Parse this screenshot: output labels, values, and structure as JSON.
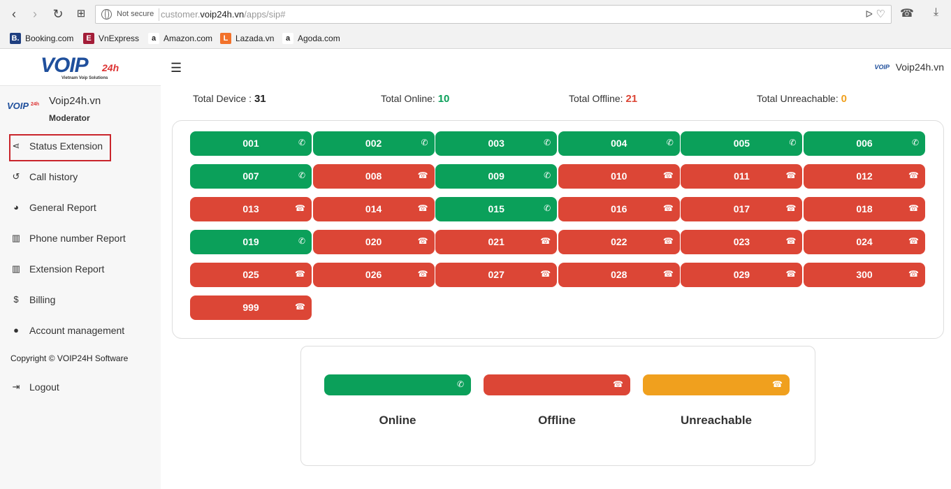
{
  "browser": {
    "security": "Not secure",
    "url_prefix": "customer.",
    "url_domain": "voip24h.vn",
    "url_path": "/apps/sip#",
    "bookmarks": [
      {
        "label": "Booking.com",
        "fav": "B.",
        "color": "#1f3f80"
      },
      {
        "label": "VnExpress",
        "fav": "E",
        "color": "#a31d38"
      },
      {
        "label": "Amazon.com",
        "fav": "a",
        "color": "#ffffff"
      },
      {
        "label": "Lazada.vn",
        "fav": "L",
        "color": "#f2722b"
      },
      {
        "label": "Agoda.com",
        "fav": "a",
        "color": "#ffffff"
      }
    ]
  },
  "logo": {
    "text": "VOIP",
    "suffix": "24h",
    "tagline": "Vietnam Voip Solutions"
  },
  "profile": {
    "avatar_text": "VOIP",
    "avatar_suffix": "24h",
    "name": "Voip24h.vn",
    "role": "Moderator"
  },
  "menu": [
    {
      "label": "Status Extension",
      "icon": "share-icon",
      "glyph": "⋖"
    },
    {
      "label": "Call history",
      "icon": "history-icon",
      "glyph": "↺"
    },
    {
      "label": "General Report",
      "icon": "pie-chart-icon",
      "glyph": "◕"
    },
    {
      "label": "Phone number Report",
      "icon": "bar-chart-icon",
      "glyph": "▥"
    },
    {
      "label": "Extension Report",
      "icon": "bar-chart-icon",
      "glyph": "▥"
    },
    {
      "label": "Billing",
      "icon": "dollar-icon",
      "glyph": "$"
    },
    {
      "label": "Account management",
      "icon": "user-icon",
      "glyph": "●"
    }
  ],
  "copyright": "Copyright © VOIP24H Software",
  "logout": {
    "label": "Logout",
    "glyph": "⇥"
  },
  "header": {
    "brand": "Voip24h.vn",
    "mini_logo": "VOIP"
  },
  "totals": {
    "device_label": "Total Device : ",
    "device": "31",
    "online_label": "Total Online: ",
    "online": "10",
    "offline_label": "Total Offline: ",
    "offline": "21",
    "unreachable_label": "Total Unreachable: ",
    "unreachable": "0"
  },
  "colors": {
    "online": "#0ba05a",
    "offline": "#dc4636",
    "unreachable": "#f0a01e"
  },
  "extensions": [
    {
      "id": "001",
      "status": "online"
    },
    {
      "id": "002",
      "status": "online"
    },
    {
      "id": "003",
      "status": "online"
    },
    {
      "id": "004",
      "status": "online"
    },
    {
      "id": "005",
      "status": "online"
    },
    {
      "id": "006",
      "status": "online"
    },
    {
      "id": "007",
      "status": "online"
    },
    {
      "id": "008",
      "status": "offline"
    },
    {
      "id": "009",
      "status": "online"
    },
    {
      "id": "010",
      "status": "offline"
    },
    {
      "id": "011",
      "status": "offline"
    },
    {
      "id": "012",
      "status": "offline"
    },
    {
      "id": "013",
      "status": "offline"
    },
    {
      "id": "014",
      "status": "offline"
    },
    {
      "id": "015",
      "status": "online"
    },
    {
      "id": "016",
      "status": "offline"
    },
    {
      "id": "017",
      "status": "offline"
    },
    {
      "id": "018",
      "status": "offline"
    },
    {
      "id": "019",
      "status": "online"
    },
    {
      "id": "020",
      "status": "offline"
    },
    {
      "id": "021",
      "status": "offline"
    },
    {
      "id": "022",
      "status": "offline"
    },
    {
      "id": "023",
      "status": "offline"
    },
    {
      "id": "024",
      "status": "offline"
    },
    {
      "id": "025",
      "status": "offline"
    },
    {
      "id": "026",
      "status": "offline"
    },
    {
      "id": "027",
      "status": "offline"
    },
    {
      "id": "028",
      "status": "offline"
    },
    {
      "id": "029",
      "status": "offline"
    },
    {
      "id": "300",
      "status": "offline"
    },
    {
      "id": "999",
      "status": "offline"
    }
  ],
  "legend": [
    {
      "label": "Online",
      "status": "online"
    },
    {
      "label": "Offline",
      "status": "offline"
    },
    {
      "label": "Unreachable",
      "status": "unreachable"
    }
  ]
}
